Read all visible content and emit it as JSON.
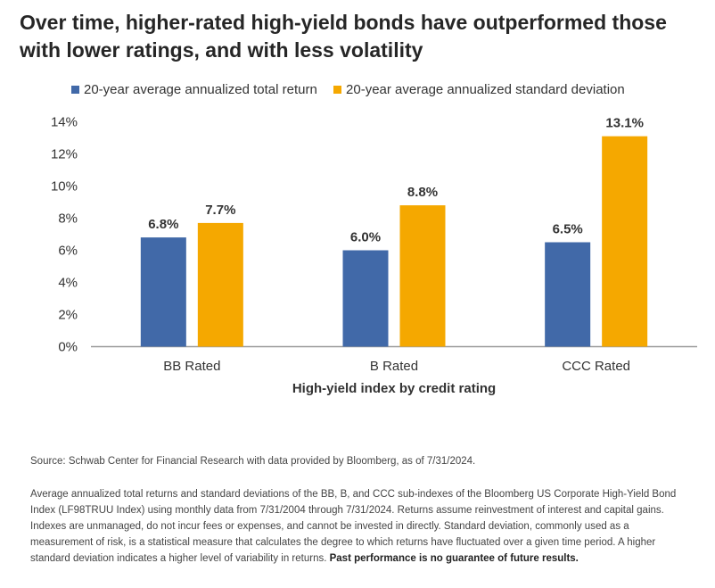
{
  "title": "Over time, higher-rated high-yield bonds have outperformed those with lower ratings, and with less volatility",
  "colors": {
    "return": "#4169a8",
    "stdev": "#f5a800"
  },
  "chart_data": {
    "type": "bar",
    "categories": [
      "BB Rated",
      "B Rated",
      "CCC Rated"
    ],
    "series": [
      {
        "name": "20-year average annualized total return",
        "values": [
          6.8,
          6.0,
          6.5
        ],
        "labels": [
          "6.8%",
          "6.0%",
          "6.5%"
        ]
      },
      {
        "name": "20-year average annualized standard deviation",
        "values": [
          7.7,
          8.8,
          13.1
        ],
        "labels": [
          "7.7%",
          "8.8%",
          "13.1%"
        ]
      }
    ],
    "xlabel": "High-yield index by credit rating",
    "ylabel": "",
    "ylim": [
      0,
      14
    ],
    "yticks": [
      "0%",
      "2%",
      "4%",
      "6%",
      "8%",
      "10%",
      "12%",
      "14%"
    ],
    "grid": false,
    "legend": "top-left"
  },
  "source": "Source: Schwab Center for Financial Research with data provided by Bloomberg, as of 7/31/2024.",
  "notes": "Average annualized total returns and standard deviations of the BB, B, and CCC sub-indexes of the Bloomberg US Corporate High-Yield Bond Index (LF98TRUU Index) using monthly data from 7/31/2004 through 7/31/2024. Returns assume reinvestment of interest and capital gains. Indexes are unmanaged, do not incur fees or expenses, and cannot be invested in directly. Standard deviation, commonly used as a measurement of risk, is a statistical measure that calculates the degree to which returns have fluctuated over a given time period. A higher standard deviation indicates a higher level of variability in returns.",
  "disclaimer": "Past performance is no guarantee of future results."
}
